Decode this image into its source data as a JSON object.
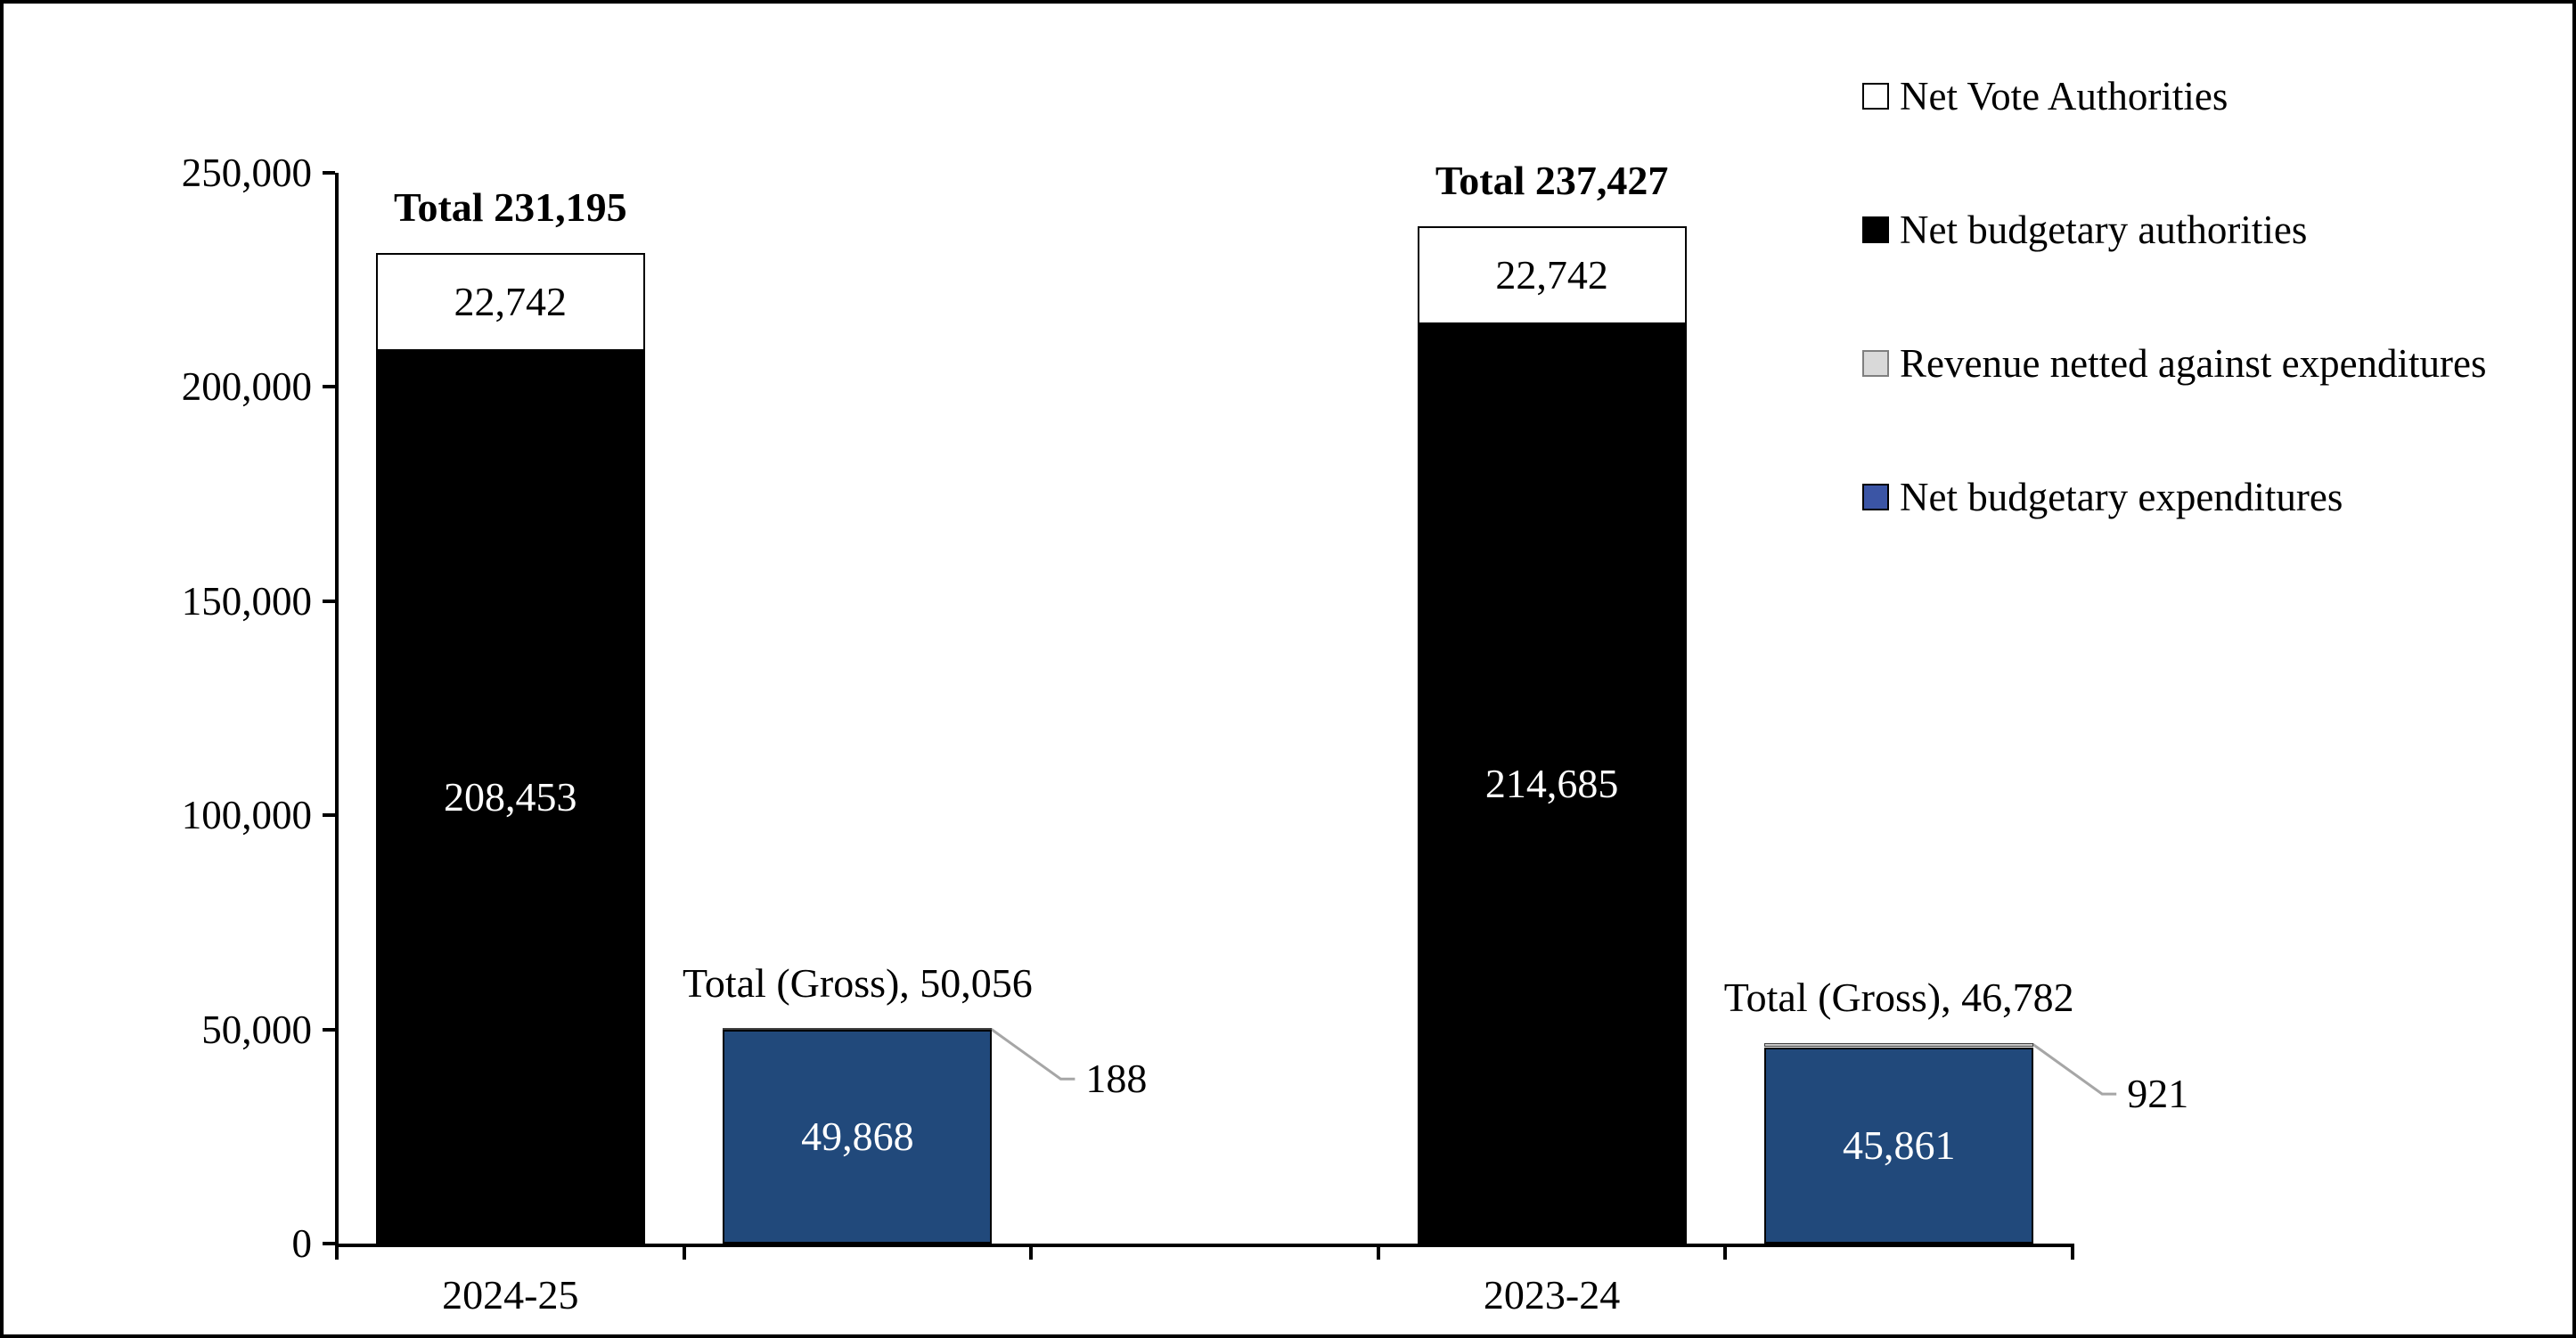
{
  "figure": {
    "background": "#FFFFFF",
    "border_color": "#000000"
  },
  "legend": {
    "position": "top-right",
    "items": [
      {
        "label": "Net Vote Authorities",
        "swatch_fill": "#FFFFFF",
        "swatch_border": "#000000"
      },
      {
        "label": "Net budgetary authorities",
        "swatch_fill": "#000000",
        "swatch_border": "#000000"
      },
      {
        "label": "Revenue netted against expenditures",
        "swatch_fill": "#D9D9D9",
        "swatch_border": "#7F7F7F"
      },
      {
        "label": "Net budgetary expenditures",
        "swatch_fill": "#3B55A5",
        "swatch_border": "#000000"
      }
    ]
  },
  "chart_data": {
    "type": "bar",
    "variant": "stacked-columns-with-callouts",
    "title": "",
    "xlabel": "",
    "ylabel": "",
    "ylim": [
      0,
      250000
    ],
    "ytick_step": 50000,
    "grid": "off",
    "yticks": [
      {
        "value": 0,
        "label": "0"
      },
      {
        "value": 50000,
        "label": "50,000"
      },
      {
        "value": 100000,
        "label": "100,000"
      },
      {
        "value": 150000,
        "label": "150,000"
      },
      {
        "value": 200000,
        "label": "200,000"
      },
      {
        "value": 250000,
        "label": "250,000"
      }
    ],
    "categories": [
      {
        "label": "2024-25",
        "slot": 0
      },
      {
        "label": "2023-24",
        "slot": 3
      }
    ],
    "colors": {
      "black_series": "#000000",
      "white_series": "#FFFFFF",
      "blue_series": "#21497B",
      "gray_series": "#C8C8C8",
      "leader_line": "#A6A6A6"
    },
    "bars": [
      {
        "slot": 0,
        "group": "2024-25",
        "kind": "authorities",
        "total": 231195,
        "total_label": "Total 231,195",
        "total_bold": true,
        "segments": [
          {
            "series": "Net budgetary authorities",
            "value": 208453,
            "label": "208,453",
            "fill": "#000000",
            "text_color": "#FFFFFF"
          },
          {
            "series": "Net Vote Authorities",
            "value": 22742,
            "label": "22,742",
            "fill": "#FFFFFF",
            "text_color": "#000000",
            "border": "#000000"
          }
        ]
      },
      {
        "slot": 1,
        "group": "2024-25",
        "kind": "expenditures",
        "total": 50056,
        "total_label": "Total (Gross), 50,056",
        "total_bold": false,
        "segments": [
          {
            "series": "Net budgetary expenditures",
            "value": 49868,
            "label": "49,868",
            "fill": "#21497B",
            "text_color": "#FFFFFF",
            "border": "#000000"
          },
          {
            "series": "Revenue netted against expenditures",
            "value": 188,
            "label": "188",
            "fill": "#C8C8C8",
            "border": "#404040",
            "callout": true
          }
        ]
      },
      {
        "slot": 3,
        "group": "2023-24",
        "kind": "authorities",
        "total": 237427,
        "total_label": "Total 237,427",
        "total_bold": true,
        "segments": [
          {
            "series": "Net budgetary authorities",
            "value": 214685,
            "label": "214,685",
            "fill": "#000000",
            "text_color": "#FFFFFF"
          },
          {
            "series": "Net Vote Authorities",
            "value": 22742,
            "label": "22,742",
            "fill": "#FFFFFF",
            "text_color": "#000000",
            "border": "#000000"
          }
        ]
      },
      {
        "slot": 4,
        "group": "2023-24",
        "kind": "expenditures",
        "total": 46782,
        "total_label": "Total (Gross), 46,782",
        "total_bold": false,
        "segments": [
          {
            "series": "Net budgetary expenditures",
            "value": 45861,
            "label": "45,861",
            "fill": "#21497B",
            "text_color": "#FFFFFF",
            "border": "#000000"
          },
          {
            "series": "Revenue netted against expenditures",
            "value": 921,
            "label": "921",
            "fill": "#C8C8C8",
            "border": "#404040",
            "callout": true
          }
        ]
      }
    ]
  }
}
